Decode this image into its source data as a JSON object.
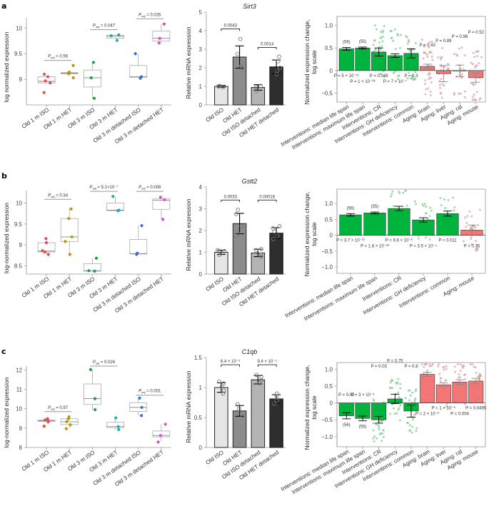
{
  "chart_data": [
    {
      "panel": "a",
      "type": "box",
      "ylabel": "log normalized expression",
      "ylim": [
        8.5,
        10.2
      ],
      "yticks": [
        9.0,
        9.5,
        10.0
      ],
      "categories": [
        "Old 1 m ISO",
        "Old 1 m HET",
        "Old 3 m ISO",
        "Old 3 m HET",
        "Old 3 m detached ISO",
        "Old 3 m detached HET"
      ],
      "colors": [
        "#d9534f",
        "#b8960a",
        "#1aa33a",
        "#1ab0b0",
        "#3a6fd8",
        "#d84fc9"
      ],
      "boxes": [
        {
          "q1": 8.93,
          "median": 8.96,
          "q3": 9.05,
          "min": 8.93,
          "max": 9.05,
          "points": [
            8.74,
            8.93,
            8.97,
            9.05,
            9.1
          ]
        },
        {
          "q1": 9.11,
          "median": 9.12,
          "q3": 9.13,
          "min": 9.11,
          "max": 9.13,
          "points": [
            9.03,
            9.11,
            9.12,
            9.14,
            9.27
          ]
        },
        {
          "q1": 8.85,
          "median": 9.03,
          "q3": 9.18,
          "min": 8.63,
          "max": 9.33,
          "points": [
            8.63,
            9.03,
            9.33
          ]
        },
        {
          "q1": 9.8,
          "median": 9.84,
          "q3": 9.86,
          "min": 9.8,
          "max": 9.86,
          "points": [
            9.76,
            9.85,
            9.87
          ]
        },
        {
          "q1": 9.04,
          "median": 9.05,
          "q3": 9.27,
          "min": 9.04,
          "max": 9.5,
          "points": [
            9.02,
            9.05,
            9.5
          ]
        },
        {
          "q1": 9.75,
          "median": 9.8,
          "q3": 9.94,
          "min": 9.7,
          "max": 10.08,
          "points": [
            9.71,
            9.8,
            10.08
          ]
        }
      ],
      "comparisons": [
        {
          "from": 0,
          "to": 1,
          "label": "P_adj = 0.56",
          "y": 9.37
        },
        {
          "from": 2,
          "to": 3,
          "label": "P_adj = 0.047",
          "y": 9.97
        },
        {
          "from": 4,
          "to": 5,
          "label": "P_adj = 0.026",
          "y": 10.18
        }
      ]
    },
    {
      "panel": "a",
      "type": "bar",
      "title": "Sirt3",
      "ylabel": "Relative mRNA expression",
      "ylim": [
        0,
        5
      ],
      "yticks": [
        0,
        1,
        2,
        3,
        4,
        5
      ],
      "categories": [
        "Old ISO",
        "Old HET",
        "Old ISO detached",
        "Old HET detached"
      ],
      "values": [
        1.0,
        2.58,
        0.94,
        2.05
      ],
      "errors": [
        0.05,
        0.6,
        0.15,
        0.37
      ],
      "fills": [
        "#e6e6e6",
        "#8c8c8c",
        "#b4b4b4",
        "#2e2e2e"
      ],
      "points": [
        [
          0.95,
          1.0,
          1.02,
          1.0
        ],
        [
          2.0,
          2.1,
          2.75,
          3.55
        ],
        [
          0.75,
          0.95,
          1.02
        ],
        [
          1.65,
          1.85,
          2.0,
          2.35,
          2.6
        ]
      ],
      "comparisons": [
        {
          "from": 0,
          "to": 1,
          "label": "0.0043",
          "y": 4.1
        },
        {
          "from": 2,
          "to": 3,
          "label": "0.0014",
          "y": 3.1
        }
      ]
    },
    {
      "panel": "a",
      "type": "bar",
      "ylabel": "Normalized expression change, log scale",
      "ylim": [
        -0.7,
        1.2
      ],
      "yticks": [
        -0.5,
        0,
        0.5,
        1.0
      ],
      "ytick_labels": [
        "−0.5",
        "0",
        "0.5",
        "1.0"
      ],
      "categories": [
        "Interventions: median life span",
        "Interventions: maximum life span",
        "Interventions: CR",
        "Interventions: GH deficiency",
        "Interventions: common",
        "Aging: brain",
        "Aging: liver",
        "Aging: rat",
        "Aging: mouse"
      ],
      "values": [
        0.48,
        0.5,
        0.41,
        0.33,
        0.38,
        0.09,
        -0.07,
        -0.01,
        -0.16
      ],
      "errors": [
        0.03,
        0.02,
        0.09,
        0.04,
        0.1,
        0.05,
        0.18,
        0.13,
        0.1
      ],
      "bar_colors": [
        "#00b33c",
        "#00b33c",
        "#00b33c",
        "#00b33c",
        "#00b33c",
        "#f26b6b",
        "#f26b6b",
        "#f26b6b",
        "#f26b6b"
      ],
      "labels": [
        "(56)",
        "(55)",
        "",
        "",
        "",
        "",
        "",
        "",
        ""
      ],
      "p_values": [
        "P = 5 × 10⁻¹⁵",
        "P = 1 × 10⁻²⁶",
        "P = 0.049",
        "P = 7 × 10⁻⁷",
        "P = 0.3",
        "P = 0.43",
        "P = 0.89",
        "P = 0.98",
        "P = 0.52"
      ]
    },
    {
      "panel": "b",
      "type": "box",
      "ylabel": "log-normalized expression",
      "ylim": [
        8.3,
        10.3
      ],
      "yticks": [
        8.5,
        9.0,
        9.5,
        10.0
      ],
      "categories": [
        "Old 1 m ISO",
        "Old 1 m HET",
        "Old 3 m ISO",
        "Old 3 m HET",
        "Old 3 m detached ISO",
        "Old 3 m detached HET"
      ],
      "colors": [
        "#d9534f",
        "#b8960a",
        "#1aa33a",
        "#1ab0b0",
        "#3a6fd8",
        "#d84fc9"
      ],
      "boxes": [
        {
          "q1": 8.83,
          "median": 8.85,
          "q3": 9.05,
          "min": 8.77,
          "max": 9.15,
          "points": [
            8.77,
            8.83,
            8.86,
            9.05,
            9.15
          ]
        },
        {
          "q1": 9.08,
          "median": 9.19,
          "q3": 9.63,
          "min": 8.77,
          "max": 9.86,
          "points": [
            8.77,
            9.08,
            9.19,
            9.63,
            9.86
          ]
        },
        {
          "q1": 8.37,
          "median": 8.38,
          "q3": 8.55,
          "min": 8.37,
          "max": 8.68,
          "points": [
            8.37,
            8.38,
            8.68
          ]
        },
        {
          "q1": 9.82,
          "median": 9.83,
          "q3": 10.0,
          "min": 9.82,
          "max": 10.16,
          "points": [
            9.82,
            9.83,
            10.16
          ]
        },
        {
          "q1": 8.78,
          "median": 8.79,
          "q3": 9.13,
          "min": 8.78,
          "max": 9.46,
          "points": [
            8.77,
            8.8,
            9.46
          ]
        },
        {
          "q1": 9.85,
          "median": 10.07,
          "q3": 10.1,
          "min": 9.61,
          "max": 10.14,
          "points": [
            9.61,
            10.08,
            10.14
          ]
        }
      ],
      "comparisons": [
        {
          "from": 0,
          "to": 1,
          "label": "P_adj = 0.34",
          "y": 10.09
        },
        {
          "from": 2,
          "to": 3,
          "label": "P_adj = 5.1×10⁻⁷",
          "y": 10.28
        },
        {
          "from": 4,
          "to": 5,
          "label": "P_adj = 0.008",
          "y": 10.28
        }
      ]
    },
    {
      "panel": "b",
      "type": "bar",
      "title": "Gstt2",
      "ylabel": "Relative mRNA expression",
      "ylim": [
        0,
        4
      ],
      "yticks": [
        0,
        1,
        2,
        3,
        4
      ],
      "categories": [
        "Old ISO",
        "Old HET",
        "Old ISO detached",
        "Old HET detached"
      ],
      "values": [
        1.0,
        2.32,
        0.97,
        1.88
      ],
      "errors": [
        0.1,
        0.47,
        0.17,
        0.25
      ],
      "fills": [
        "#e6e6e6",
        "#8c8c8c",
        "#b4b4b4",
        "#2e2e2e"
      ],
      "points": [
        [
          0.88,
          0.95,
          1.05,
          1.1
        ],
        [
          1.75,
          1.85,
          2.2,
          2.75,
          2.95
        ],
        [
          0.8,
          0.9,
          1.1,
          1.15
        ],
        [
          1.6,
          1.75,
          1.95,
          2.1,
          2.2
        ]
      ],
      "comparisons": [
        {
          "from": 0,
          "to": 1,
          "label": "0.0033",
          "y": 3.4
        },
        {
          "from": 2,
          "to": 3,
          "label": "0.00018",
          "y": 3.4
        }
      ]
    },
    {
      "panel": "b",
      "type": "bar",
      "ylabel": "Normalized expression change, log scale",
      "ylim": [
        -1.2,
        1.45
      ],
      "yticks": [
        -1.0,
        -0.5,
        0,
        0.5,
        1.0
      ],
      "ytick_labels": [
        "−1.0",
        "−0.5",
        "0",
        "0.5",
        "1.0"
      ],
      "categories": [
        "Interventions: median life span",
        "Interventions: maximum life span",
        "Interventions: CR",
        "Interventions: GH deficiency",
        "Interventions: common",
        "Aging: mouse"
      ],
      "values": [
        0.64,
        0.7,
        0.84,
        0.48,
        0.68,
        0.16
      ],
      "errors": [
        0.04,
        0.03,
        0.07,
        0.07,
        0.08,
        0.16
      ],
      "bar_colors": [
        "#00b33c",
        "#00b33c",
        "#00b33c",
        "#00b33c",
        "#00b33c",
        "#f26b6b"
      ],
      "labels": [
        "(56)",
        "(55)",
        "",
        "",
        "",
        ""
      ],
      "p_values": [
        "P = 3.7 × 10⁻¹²",
        "P = 1.8 × 10⁻²³",
        "P = 6.6 × 10⁻⁶",
        "P = 3.5 × 10⁻⁴",
        "P = 0.011",
        "P = 0.75"
      ]
    },
    {
      "panel": "c",
      "type": "box",
      "ylabel": "log-normalized expression",
      "ylim": [
        8,
        12.2
      ],
      "yticks": [
        8,
        9,
        10,
        11,
        12
      ],
      "categories": [
        "Old 1 m ISO",
        "Old 1 m HET",
        "Old 3 m ISO",
        "Old 3 m HET",
        "Old 3 m detached ISO",
        "Old 3 m detached HET"
      ],
      "colors": [
        "#d9534f",
        "#b8960a",
        "#1aa33a",
        "#1ab0b0",
        "#3a6fd8",
        "#d84fc9"
      ],
      "boxes": [
        {
          "q1": 9.35,
          "median": 9.38,
          "q3": 9.42,
          "min": 9.35,
          "max": 9.42,
          "points": [
            9.1,
            9.32,
            9.38,
            9.42,
            9.49
          ]
        },
        {
          "q1": 9.18,
          "median": 9.33,
          "q3": 9.48,
          "min": 8.97,
          "max": 9.58,
          "points": [
            8.97,
            9.17,
            9.33,
            9.48,
            9.58
          ]
        },
        {
          "q1": 10.22,
          "median": 10.52,
          "q3": 11.28,
          "min": 9.95,
          "max": 12.02,
          "points": [
            9.95,
            10.52,
            12.02
          ]
        },
        {
          "q1": 9.02,
          "median": 9.08,
          "q3": 9.3,
          "min": 8.92,
          "max": 9.53,
          "points": [
            8.92,
            9.08,
            9.53
          ]
        },
        {
          "q1": 9.86,
          "median": 10.07,
          "q3": 10.31,
          "min": 9.65,
          "max": 10.55,
          "points": [
            9.65,
            10.07,
            10.55
          ]
        },
        {
          "q1": 8.55,
          "median": 8.62,
          "q3": 8.85,
          "min": 8.3,
          "max": 9.2,
          "points": [
            8.28,
            8.62,
            9.2
          ]
        }
      ],
      "comparisons": [
        {
          "from": 0,
          "to": 1,
          "label": "P_adj = 0.97",
          "y": 9.85
        },
        {
          "from": 2,
          "to": 3,
          "label": "P_adj = 0.026",
          "y": 12.2
        },
        {
          "from": 4,
          "to": 5,
          "label": "P_adj = 0.001",
          "y": 10.7
        }
      ]
    },
    {
      "panel": "c",
      "type": "bar",
      "title": "C1qb",
      "ylabel": "Relative mRNA expression",
      "ylim": [
        0,
        1.5
      ],
      "yticks": [
        0,
        0.5,
        1.0,
        1.5
      ],
      "categories": [
        "Old ISO",
        "Old HET",
        "Old ISO detached",
        "Old HET detached"
      ],
      "values": [
        1.0,
        0.61,
        1.13,
        0.81
      ],
      "errors": [
        0.08,
        0.09,
        0.07,
        0.07
      ],
      "fills": [
        "#e6e6e6",
        "#8c8c8c",
        "#b4b4b4",
        "#2e2e2e"
      ],
      "points": [
        [
          0.9,
          0.95,
          1.02,
          1.07,
          1.1
        ],
        [
          0.52,
          0.58,
          0.65,
          0.72
        ],
        [
          1.07,
          1.12,
          1.18,
          1.21
        ],
        [
          0.73,
          0.78,
          0.85,
          0.9
        ]
      ],
      "comparisons": [
        {
          "from": 0,
          "to": 1,
          "label": "6.4 × 10⁻⁵",
          "y": 1.38
        },
        {
          "from": 2,
          "to": 3,
          "label": "9.4 × 10⁻⁵",
          "y": 1.38
        }
      ]
    },
    {
      "panel": "c",
      "type": "bar",
      "ylabel": "Normalized expression change, log scale",
      "ylim": [
        -1.3,
        1.2
      ],
      "yticks": [
        -1.0,
        -0.5,
        0,
        0.5,
        1.0
      ],
      "ytick_labels": [
        "−1.0",
        "−0.5",
        "0",
        "0.5",
        "1.0"
      ],
      "categories": [
        "Interventions: median life span",
        "Interventions: maximum life span",
        "Interventions: CR",
        "Interventions: GH deficiency",
        "Interventions: common",
        "Aging: brain",
        "Aging: liver",
        "Aging: rat",
        "Aging: mouse"
      ],
      "values": [
        -0.38,
        -0.46,
        -0.5,
        0.12,
        -0.24,
        0.85,
        0.54,
        0.62,
        0.65
      ],
      "errors": [
        0.09,
        0.07,
        0.1,
        0.14,
        0.18,
        0.06,
        0.06,
        0.07,
        0.08
      ],
      "bar_colors": [
        "#00b33c",
        "#00b33c",
        "#00b33c",
        "#00b33c",
        "#00b33c",
        "#f26b6b",
        "#f26b6b",
        "#f26b6b",
        "#f26b6b"
      ],
      "labels": [
        "(56)",
        "(55)",
        "",
        "",
        "",
        "",
        "",
        "",
        ""
      ],
      "p_values": [
        "P = 0.02",
        "P = 3 × 10⁻⁶",
        "P = 0.03",
        "P = 0.75",
        "P = 0.8",
        "P = 2 × 10⁻⁶",
        "P = 1 × 10⁻⁵",
        "P = 0.004",
        "P = 0.0495"
      ]
    }
  ],
  "panel_labels": [
    "a",
    "b",
    "c"
  ]
}
